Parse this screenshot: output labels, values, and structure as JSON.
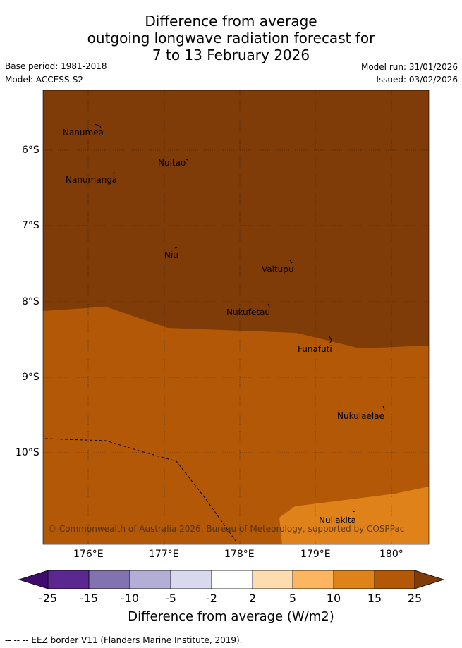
{
  "title": {
    "line1": "Difference from average",
    "line2": "outgoing longwave radiation forecast for",
    "line3": "7 to 13 February 2026"
  },
  "meta": {
    "base_period": "Base period: 1981-2018",
    "model": "Model: ACCESS-S2",
    "model_run": "Model run: 31/01/2026",
    "issued": "Issued: 03/02/2026"
  },
  "map": {
    "lat_labels": [
      "6°S",
      "7°S",
      "8°S",
      "9°S",
      "10°S"
    ],
    "lon_labels": [
      "176°E",
      "177°E",
      "178°E",
      "179°E",
      "180°"
    ],
    "places": [
      "Nanumea",
      "Nuitao",
      "Nanumanga",
      "Niu",
      "Vaitupu",
      "Nukufetau",
      "Funafuti",
      "Nukulaelae",
      "Nuilakita"
    ],
    "copyright": "© Commonwealth of Australia 2026, Bureau of Meteorology, supported by COSPPac"
  },
  "colorbar": {
    "ticks": [
      "-25",
      "-15",
      "-10",
      "-5",
      "-2",
      "2",
      "5",
      "10",
      "15",
      "25"
    ],
    "colors": [
      "#3f0c6e",
      "#5b2790",
      "#8273b0",
      "#b3aed5",
      "#d8d9ec",
      "#ffffff",
      "#fddcb0",
      "#fdb560",
      "#e0821a",
      "#b35807",
      "#7f3b08"
    ],
    "title": "Difference from average (W/m2)"
  },
  "footer": "-- -- -- EEZ border V11 (Flanders Marine Institute, 2019)."
}
